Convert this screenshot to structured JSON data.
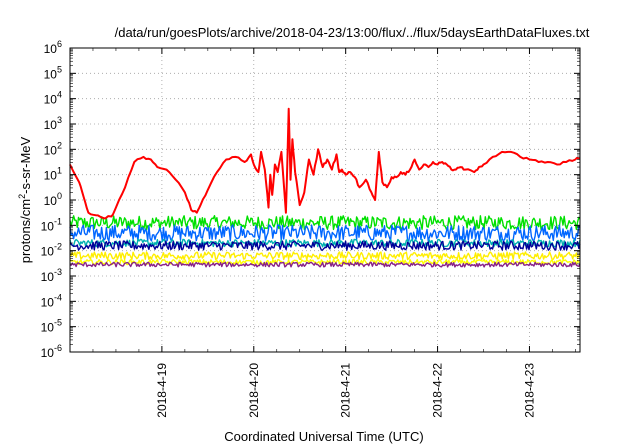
{
  "chart_data": {
    "type": "line",
    "title": "/data/run/goesPlots/archive/2018-04-23/13:00/flux/../flux/5daysEarthDataFluxes.txt",
    "xlabel": "Coordinated Universal Time (UTC)",
    "ylabel": "protons/cm²-s-sr-MeV",
    "ylabel_parts": {
      "pre": "protons/cm",
      "sup": "2",
      "post": "-s-sr-MeV"
    },
    "yscale": "log",
    "ylim_exp": [
      -6,
      6
    ],
    "xlim_days": [
      0,
      5.55
    ],
    "grid": true,
    "x_ticks": [
      {
        "day": 1,
        "label": "2018-4-19"
      },
      {
        "day": 2,
        "label": "2018-4-20"
      },
      {
        "day": 3,
        "label": "2018-4-21"
      },
      {
        "day": 4,
        "label": "2018-4-22"
      },
      {
        "day": 5,
        "label": "2018-4-23"
      }
    ],
    "y_ticks": [
      {
        "exp": -6,
        "base": "10",
        "sup": "-6"
      },
      {
        "exp": -5,
        "base": "10",
        "sup": "-5"
      },
      {
        "exp": -4,
        "base": "10",
        "sup": "-4"
      },
      {
        "exp": -3,
        "base": "10",
        "sup": "-3"
      },
      {
        "exp": -2,
        "base": "10",
        "sup": "-2"
      },
      {
        "exp": -1,
        "base": "10",
        "sup": "-1"
      },
      {
        "exp": 0,
        "base": "10",
        "sup": "0"
      },
      {
        "exp": 1,
        "base": "10",
        "sup": "1"
      },
      {
        "exp": 2,
        "base": "10",
        "sup": "2"
      },
      {
        "exp": 3,
        "base": "10",
        "sup": "3"
      },
      {
        "exp": 4,
        "base": "10",
        "sup": "4"
      },
      {
        "exp": 5,
        "base": "10",
        "sup": "5"
      },
      {
        "exp": 6,
        "base": "10",
        "sup": "6"
      }
    ],
    "series": [
      {
        "color": "#ff0000",
        "noise": 0.05,
        "points": [
          [
            0.0,
            1.4
          ],
          [
            0.1,
            0.7
          ],
          [
            0.15,
            0.1
          ],
          [
            0.2,
            -0.5
          ],
          [
            0.28,
            -0.6
          ],
          [
            0.35,
            -0.7
          ],
          [
            0.45,
            -0.65
          ],
          [
            0.5,
            -0.3
          ],
          [
            0.6,
            0.5
          ],
          [
            0.7,
            1.5
          ],
          [
            0.8,
            1.7
          ],
          [
            0.88,
            1.6
          ],
          [
            0.95,
            1.3
          ],
          [
            1.05,
            1.2
          ],
          [
            1.15,
            0.8
          ],
          [
            1.25,
            0.3
          ],
          [
            1.32,
            -0.4
          ],
          [
            1.38,
            -0.5
          ],
          [
            1.42,
            -0.2
          ],
          [
            1.5,
            0.4
          ],
          [
            1.6,
            1.1
          ],
          [
            1.7,
            1.6
          ],
          [
            1.8,
            1.7
          ],
          [
            1.9,
            1.5
          ],
          [
            1.97,
            1.8
          ],
          [
            2.0,
            1.4
          ],
          [
            2.05,
            1.1
          ],
          [
            2.08,
            1.9
          ],
          [
            2.12,
            1.2
          ],
          [
            2.16,
            -0.3
          ],
          [
            2.18,
            1.0
          ],
          [
            2.2,
            0.2
          ],
          [
            2.23,
            1.4
          ],
          [
            2.26,
            1.1
          ],
          [
            2.3,
            1.9
          ],
          [
            2.35,
            -0.5
          ],
          [
            2.38,
            3.6
          ],
          [
            2.4,
            0.8
          ],
          [
            2.42,
            2.4
          ],
          [
            2.45,
            1.1
          ],
          [
            2.5,
            -0.2
          ],
          [
            2.55,
            0.3
          ],
          [
            2.6,
            1.6
          ],
          [
            2.65,
            1.0
          ],
          [
            2.7,
            2.0
          ],
          [
            2.75,
            1.3
          ],
          [
            2.8,
            1.6
          ],
          [
            2.85,
            1.2
          ],
          [
            2.9,
            1.8
          ],
          [
            2.93,
            1.1
          ],
          [
            2.96,
            1.2
          ],
          [
            3.0,
            1.0
          ],
          [
            3.05,
            1.1
          ],
          [
            3.1,
            0.9
          ],
          [
            3.15,
            0.5
          ],
          [
            3.22,
            0.8
          ],
          [
            3.28,
            0.3
          ],
          [
            3.32,
            0.0
          ],
          [
            3.36,
            1.9
          ],
          [
            3.4,
            0.7
          ],
          [
            3.45,
            0.5
          ],
          [
            3.5,
            0.9
          ],
          [
            3.55,
            0.9
          ],
          [
            3.6,
            1.1
          ],
          [
            3.65,
            1.0
          ],
          [
            3.7,
            1.2
          ],
          [
            3.75,
            1.6
          ],
          [
            3.8,
            1.2
          ],
          [
            3.85,
            1.4
          ],
          [
            3.9,
            1.3
          ],
          [
            3.95,
            1.5
          ],
          [
            4.0,
            1.4
          ],
          [
            4.05,
            1.5
          ],
          [
            4.1,
            1.4
          ],
          [
            4.15,
            1.2
          ],
          [
            4.2,
            1.2
          ],
          [
            4.25,
            1.3
          ],
          [
            4.3,
            1.2
          ],
          [
            4.4,
            1.1
          ],
          [
            4.45,
            1.3
          ],
          [
            4.5,
            1.4
          ],
          [
            4.6,
            1.7
          ],
          [
            4.7,
            1.9
          ],
          [
            4.8,
            1.9
          ],
          [
            4.9,
            1.7
          ],
          [
            5.0,
            1.6
          ],
          [
            5.1,
            1.5
          ],
          [
            5.2,
            1.5
          ],
          [
            5.3,
            1.4
          ],
          [
            5.4,
            1.5
          ],
          [
            5.5,
            1.6
          ],
          [
            5.55,
            1.65
          ]
        ]
      },
      {
        "color": "#00e000",
        "level": -0.9,
        "noise": 0.28
      },
      {
        "color": "#0066ff",
        "level": -1.3,
        "noise": 0.32
      },
      {
        "color": "#00b0b0",
        "level": -1.7,
        "noise": 0.15
      },
      {
        "color": "#000099",
        "level": -1.8,
        "noise": 0.18
      },
      {
        "color": "#ffee00",
        "level": -2.2,
        "noise": 0.15
      },
      {
        "color": "#ffff00",
        "level": -2.45,
        "noise": 0.1
      },
      {
        "color": "#882288",
        "level": -2.55,
        "noise": 0.09
      }
    ]
  }
}
